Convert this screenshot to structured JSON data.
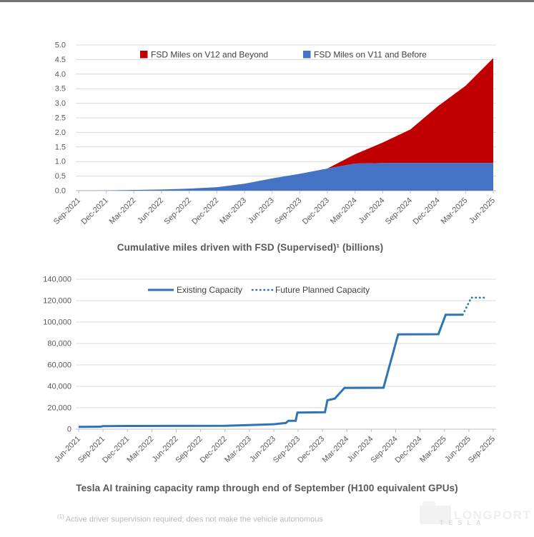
{
  "page": {
    "background": "#FFFFFF",
    "top_bar_color": "#737373"
  },
  "chart_data": [
    {
      "type": "area",
      "stacked": true,
      "title": "Cumulative miles driven with FSD (Supervised)¹ (billions)",
      "categories": [
        "Sep-2021",
        "Dec-2021",
        "Mar-2022",
        "Jun-2022",
        "Sep-2022",
        "Dec-2022",
        "Mar-2023",
        "Jun-2023",
        "Sep-2023",
        "Dec-2023",
        "Mar-2024",
        "Jun-2024",
        "Sep-2024",
        "Dec-2024",
        "Mar-2025",
        "Jun-2025"
      ],
      "ylim": [
        0,
        5
      ],
      "ytick_labels": [
        "0.0",
        "0.5",
        "1.0",
        "1.5",
        "2.0",
        "2.5",
        "3.0",
        "3.5",
        "4.0",
        "4.5",
        "5.0"
      ],
      "grid": "horizontal",
      "legend_position": "top-inside",
      "series": [
        {
          "name": "FSD Miles on V11 and Before",
          "color": "#4472C4",
          "values": [
            0.005,
            0.01,
            0.025,
            0.04,
            0.07,
            0.12,
            0.24,
            0.42,
            0.58,
            0.76,
            0.93,
            0.95,
            0.95,
            0.95,
            0.95,
            0.95
          ]
        },
        {
          "name": "FSD Miles on V12 and Beyond",
          "color": "#C00000",
          "stacked_on": "FSD Miles on V11 and Before",
          "values": [
            0,
            0,
            0,
            0,
            0,
            0,
            0,
            0,
            0,
            0,
            0.32,
            0.7,
            1.15,
            1.95,
            2.65,
            3.6
          ]
        }
      ],
      "legend": [
        {
          "label": "FSD Miles on V12 and Beyond",
          "color": "#C00000",
          "swatch": "square"
        },
        {
          "label": "FSD Miles on V11 and Before",
          "color": "#4472C4",
          "swatch": "square"
        }
      ]
    },
    {
      "type": "line",
      "title": "Tesla AI training capacity ramp through end of September (H100 equivalent GPUs)",
      "categories": [
        "Jun-2021",
        "Sep-2021",
        "Dec-2021",
        "Mar-2022",
        "Jun-2022",
        "Sep-2022",
        "Dec-2022",
        "Mar-2023",
        "Jun-2023",
        "Sep-2023",
        "Dec-2023",
        "Mar-2024",
        "Jun-2024",
        "Sep-2024",
        "Dec-2024",
        "Mar-2025",
        "Jun-2025",
        "Sep-2025"
      ],
      "ylim": [
        0,
        140000
      ],
      "ytick_labels": [
        "0",
        "20,000",
        "40,000",
        "60,000",
        "80,000",
        "100,000",
        "120,000",
        "140,000"
      ],
      "grid": "horizontal",
      "legend_position": "top-inside",
      "series": [
        {
          "name": "Existing Capacity",
          "color": "#2E75B6",
          "line_style": "solid",
          "points": [
            [
              0,
              2200
            ],
            [
              0.9,
              2300
            ],
            [
              1,
              2800
            ],
            [
              2,
              3000
            ],
            [
              4,
              3100
            ],
            [
              6,
              3200
            ],
            [
              7,
              3800
            ],
            [
              8,
              4600
            ],
            [
              8.5,
              5800
            ],
            [
              8.6,
              7800
            ],
            [
              8.9,
              7800
            ],
            [
              8.97,
              15500
            ],
            [
              10.1,
              15800
            ],
            [
              10.2,
              27000
            ],
            [
              10.5,
              28500
            ],
            [
              10.9,
              38500
            ],
            [
              12.5,
              38700
            ],
            [
              13.1,
              88500
            ],
            [
              14.75,
              88700
            ],
            [
              15.05,
              106800
            ],
            [
              15.75,
              106800
            ]
          ]
        },
        {
          "name": "Future Planned Capacity",
          "color": "#2E75B6",
          "line_style": "dotted",
          "points": [
            [
              15.75,
              106800
            ],
            [
              16.1,
              122800
            ],
            [
              16.65,
              122800
            ]
          ]
        }
      ],
      "legend": [
        {
          "label": "Existing Capacity",
          "color": "#2E75B6",
          "swatch": "line-solid"
        },
        {
          "label": "Future Planned Capacity",
          "color": "#2E75B6",
          "swatch": "line-dotted"
        }
      ]
    }
  ],
  "footnote": {
    "marker": "(1)",
    "text": "Active driver supervision required; does not make the vehicle autonomous"
  },
  "watermark": {
    "brand": "LONGPORT",
    "sub": "TESLA"
  },
  "style_colors": {
    "gridline": "#D9D9D9",
    "axis": "#BFBFBF",
    "tick_text": "#595959",
    "legend_text": "#404040",
    "title_text": "#595959"
  }
}
